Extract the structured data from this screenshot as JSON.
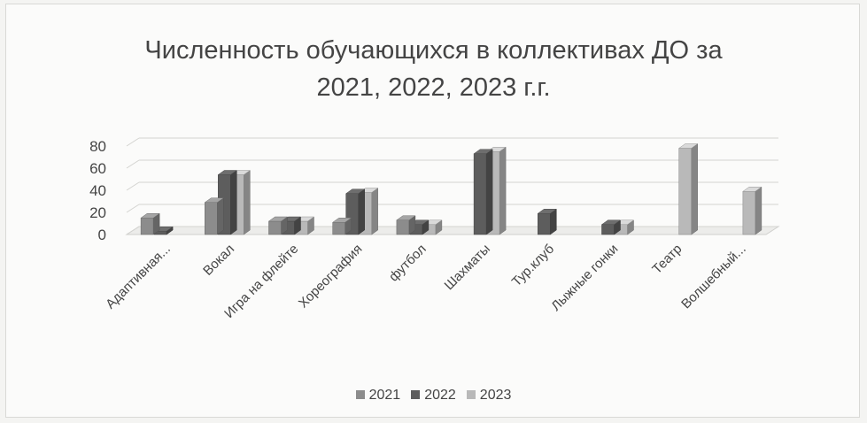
{
  "chart_data": {
    "type": "bar",
    "title": [
      "Численность обучающихся в коллективах ДО за",
      "2021, 2022, 2023 г.г."
    ],
    "categories": [
      "Адаптивная...",
      "Вокал",
      "Игра на флейте",
      "Хореография",
      "футбол",
      "Шахматы",
      "Тур.клуб",
      "Лыжные гонки",
      "Театр",
      "Волшебный..."
    ],
    "series": [
      {
        "name": "2021",
        "color": "#8c8c8c",
        "values": [
          15,
          29,
          12,
          11,
          13,
          0,
          0,
          0,
          0,
          0
        ]
      },
      {
        "name": "2022",
        "color": "#5d5d5d",
        "values": [
          3,
          54,
          12,
          37,
          9,
          73,
          19,
          9,
          0,
          0
        ]
      },
      {
        "name": "2023",
        "color": "#b9b9b9",
        "values": [
          0,
          54,
          12,
          38,
          9,
          75,
          0,
          9,
          78,
          39
        ]
      }
    ],
    "y_ticks": [
      "0",
      "20",
      "40",
      "60",
      "80"
    ],
    "ylim": [
      0,
      80
    ],
    "grid": true,
    "legend_position": "bottom",
    "style": "3d-clustered-column"
  }
}
